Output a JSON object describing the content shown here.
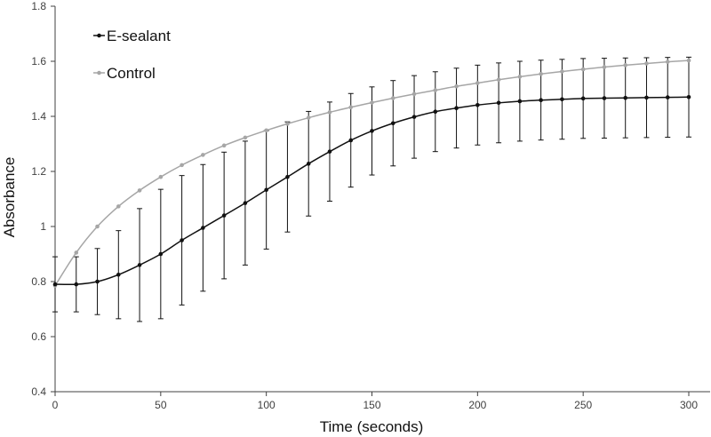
{
  "chart_data": {
    "type": "line",
    "title": "",
    "xlabel": "Time (seconds)",
    "ylabel": "Absorbance",
    "xlim": [
      0,
      310
    ],
    "ylim": [
      0.4,
      1.8
    ],
    "xticks": [
      0,
      50,
      100,
      150,
      200,
      250,
      300
    ],
    "yticks": [
      0.4,
      0.6,
      0.8,
      1.0,
      1.2,
      1.4,
      1.6,
      1.8
    ],
    "ytick_labels": [
      "0.4",
      "0.6",
      "0.8",
      "1",
      "1.2",
      "1.4",
      "1.6",
      "1.8"
    ],
    "grid": false,
    "legend_position": "top-left",
    "x": [
      0,
      10,
      20,
      30,
      40,
      50,
      60,
      70,
      80,
      90,
      100,
      110,
      120,
      130,
      140,
      150,
      160,
      170,
      180,
      190,
      200,
      210,
      220,
      230,
      240,
      250,
      260,
      270,
      280,
      290,
      300
    ],
    "series": [
      {
        "name": "E-sealant",
        "color": "#111111",
        "values": [
          0.79,
          0.79,
          0.8,
          0.825,
          0.86,
          0.9,
          0.95,
          0.995,
          1.04,
          1.085,
          1.133,
          1.18,
          1.228,
          1.272,
          1.313,
          1.347,
          1.375,
          1.398,
          1.417,
          1.43,
          1.441,
          1.449,
          1.455,
          1.459,
          1.462,
          1.465,
          1.466,
          1.467,
          1.468,
          1.469,
          1.47
        ],
        "error": [
          0.1,
          0.1,
          0.12,
          0.16,
          0.205,
          0.235,
          0.235,
          0.23,
          0.23,
          0.225,
          0.215,
          0.2,
          0.19,
          0.18,
          0.17,
          0.16,
          0.155,
          0.15,
          0.145,
          0.145,
          0.145,
          0.145,
          0.145,
          0.145,
          0.145,
          0.145,
          0.145,
          0.145,
          0.145,
          0.145,
          0.145
        ]
      },
      {
        "name": "Control",
        "color": "#a6a6a6",
        "values": [
          0.785,
          0.905,
          1.0,
          1.073,
          1.131,
          1.18,
          1.223,
          1.26,
          1.294,
          1.323,
          1.349,
          1.373,
          1.395,
          1.415,
          1.433,
          1.45,
          1.466,
          1.481,
          1.495,
          1.509,
          1.521,
          1.533,
          1.544,
          1.554,
          1.563,
          1.571,
          1.579,
          1.586,
          1.592,
          1.598,
          1.603
        ]
      }
    ]
  }
}
